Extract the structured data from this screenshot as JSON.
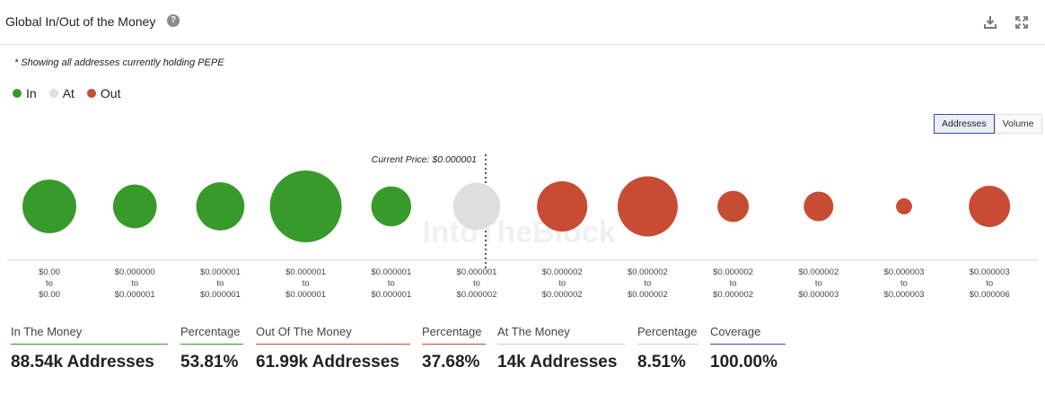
{
  "header": {
    "title": "Global In/Out of the Money",
    "help_icon": "help-icon",
    "download_icon": "download-icon",
    "expand_icon": "expand-icon"
  },
  "note": "* Showing all addresses currently holding PEPE",
  "legend": [
    {
      "label": "In",
      "color": "#379a2a"
    },
    {
      "label": "At",
      "color": "#dedede"
    },
    {
      "label": "Out",
      "color": "#c84b33"
    }
  ],
  "toggle": {
    "options": [
      "Addresses",
      "Volume"
    ],
    "selected": "Addresses"
  },
  "chart_data": {
    "type": "bubble",
    "current_price_label": "Current Price: $0.000001",
    "current_price_index": 5,
    "watermark": "IntoTheBlock",
    "size_metric": "Addresses",
    "buckets": [
      {
        "low": "$0.00",
        "high": "$0.00",
        "status": "in",
        "size": 0.56
      },
      {
        "low": "$0.000000",
        "high": "$0.000001",
        "status": "in",
        "size": 0.37
      },
      {
        "low": "$0.000001",
        "high": "$0.000001",
        "status": "in",
        "size": 0.45
      },
      {
        "low": "$0.000001",
        "high": "$0.000001",
        "status": "in",
        "size": 1.0
      },
      {
        "low": "$0.000001",
        "high": "$0.000001",
        "status": "in",
        "size": 0.31
      },
      {
        "low": "$0.000001",
        "high": "$0.000002",
        "status": "at",
        "size": 0.43
      },
      {
        "low": "$0.000002",
        "high": "$0.000002",
        "status": "out",
        "size": 0.49
      },
      {
        "low": "$0.000002",
        "high": "$0.000002",
        "status": "out",
        "size": 0.7
      },
      {
        "low": "$0.000002",
        "high": "$0.000002",
        "status": "out",
        "size": 0.19
      },
      {
        "low": "$0.000002",
        "high": "$0.000003",
        "status": "out",
        "size": 0.17
      },
      {
        "low": "$0.000003",
        "high": "$0.000003",
        "status": "out",
        "size": 0.05
      },
      {
        "low": "$0.000003",
        "high": "$0.000006",
        "status": "out",
        "size": 0.33
      }
    ],
    "range_separator": "to"
  },
  "stats": [
    {
      "label": "In The Money",
      "value": "88.54k Addresses",
      "color": "#379a2a"
    },
    {
      "label": "Percentage",
      "value": "53.81%",
      "color": "#379a2a"
    },
    {
      "label": "Out Of The Money",
      "value": "61.99k Addresses",
      "color": "#c84b33"
    },
    {
      "label": "Percentage",
      "value": "37.68%",
      "color": "#c84b33"
    },
    {
      "label": "At The Money",
      "value": "14k Addresses",
      "color": "#cccccc"
    },
    {
      "label": "Percentage",
      "value": "8.51%",
      "color": "#cccccc"
    },
    {
      "label": "Coverage",
      "value": "100.00%",
      "color": "#3b4fa0"
    }
  ]
}
